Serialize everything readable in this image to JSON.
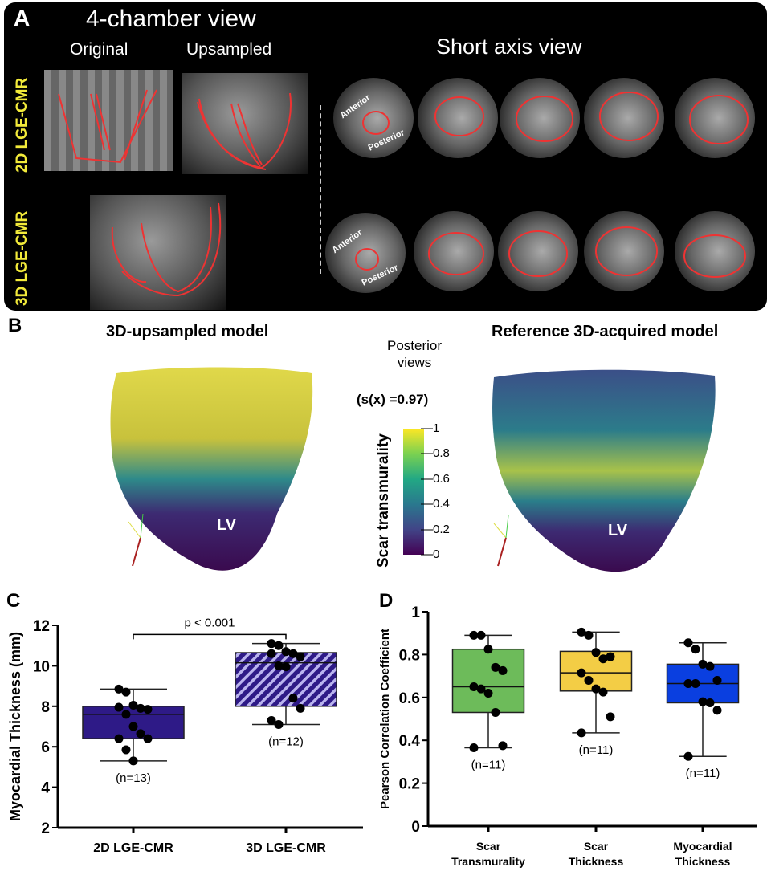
{
  "panelA": {
    "label": "A",
    "title_4ch": "4-chamber view",
    "col_original": "Original",
    "col_upsampled": "Upsampled",
    "title_sax": "Short axis view",
    "row_2d": "2D LGE-CMR",
    "row_3d": "3D LGE-CMR",
    "anterior": "Anterior",
    "posterior": "Posterior"
  },
  "panelB": {
    "label": "B",
    "left_title": "3D-upsampled model",
    "right_title": "Reference 3D-acquired model",
    "views_note": "Posterior views",
    "similarity": "(s(x) =0.97)",
    "lv_label": "LV",
    "colorbar": {
      "label": "Scar transmurality",
      "ticks": [
        "0",
        "0.2",
        "0.4",
        "0.6",
        "0.8",
        "1"
      ],
      "colormap": "viridis"
    }
  },
  "chart_data": [
    {
      "panel": "C",
      "type": "box",
      "ylabel": "Myocardial Thickness (mm)",
      "ylim": [
        2,
        12
      ],
      "yticks": [
        "2",
        "4",
        "6",
        "8",
        "10",
        "12"
      ],
      "categories": [
        "2D LGE-CMR",
        "3D LGE-CMR"
      ],
      "annotation": "p < 0.001",
      "series": [
        {
          "category": "2D LGE-CMR",
          "n_label": "(n=13)",
          "min": 5.3,
          "q1": 6.4,
          "median": 7.6,
          "q3": 8.0,
          "max": 8.85,
          "color": "#2e1a87",
          "pattern": "solid",
          "points": [
            8.85,
            8.7,
            8.05,
            7.9,
            7.85,
            7.95,
            7.6,
            7.0,
            6.65,
            6.4,
            6.4,
            5.85,
            5.3
          ]
        },
        {
          "category": "3D LGE-CMR",
          "n_label": "(n=12)",
          "min": 7.1,
          "q1": 8.0,
          "median": 10.15,
          "q3": 10.65,
          "max": 11.1,
          "color": "#2e1a87",
          "pattern": "hatched",
          "points": [
            11.1,
            11.0,
            10.7,
            10.6,
            10.45,
            10.6,
            10.0,
            9.95,
            8.4,
            7.9,
            7.3,
            7.1
          ]
        }
      ]
    },
    {
      "panel": "D",
      "type": "box",
      "ylabel": "Pearson Correlation Coefficient",
      "ylim": [
        0,
        1
      ],
      "yticks": [
        "0",
        "0.2",
        "0.4",
        "0.6",
        "0.8",
        "1"
      ],
      "categories": [
        "Scar Transmurality",
        "Scar Thickness",
        "Myocardial Thickness"
      ],
      "series": [
        {
          "category": "Scar Transmurality",
          "n_label": "(n=11)",
          "min": 0.365,
          "q1": 0.53,
          "median": 0.65,
          "q3": 0.825,
          "max": 0.89,
          "color": "#6dbb5a",
          "points": [
            0.89,
            0.89,
            0.825,
            0.74,
            0.725,
            0.65,
            0.64,
            0.62,
            0.53,
            0.375,
            0.365
          ]
        },
        {
          "category": "Scar Thickness",
          "n_label": "(n=11)",
          "min": 0.435,
          "q1": 0.63,
          "median": 0.715,
          "q3": 0.815,
          "max": 0.905,
          "color": "#f3cd45",
          "points": [
            0.905,
            0.89,
            0.81,
            0.78,
            0.79,
            0.715,
            0.68,
            0.64,
            0.625,
            0.51,
            0.435
          ]
        },
        {
          "category": "Myocardial Thickness",
          "n_label": "(n=11)",
          "min": 0.325,
          "q1": 0.575,
          "median": 0.665,
          "q3": 0.755,
          "max": 0.855,
          "color": "#0a3fe0",
          "points": [
            0.855,
            0.825,
            0.755,
            0.745,
            0.68,
            0.665,
            0.665,
            0.58,
            0.575,
            0.54,
            0.325
          ]
        }
      ]
    }
  ]
}
